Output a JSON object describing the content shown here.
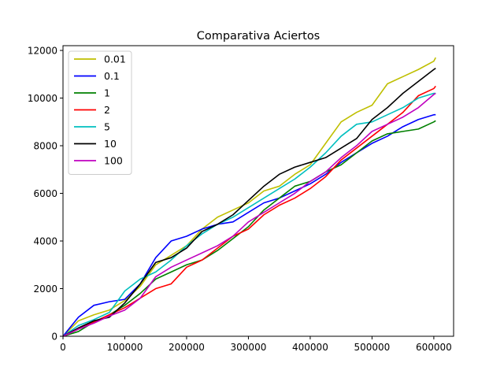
{
  "chart_data": {
    "type": "line",
    "title": "Comparativa Aciertos",
    "xlabel": "",
    "ylabel": "",
    "xlim": [
      0,
      632000
    ],
    "ylim": [
      0,
      12200
    ],
    "x_ticks": [
      0,
      100000,
      200000,
      300000,
      400000,
      500000,
      600000
    ],
    "x_tick_labels": [
      "0",
      "100000",
      "200000",
      "300000",
      "400000",
      "500000",
      "600000"
    ],
    "y_ticks": [
      0,
      2000,
      4000,
      6000,
      8000,
      10000,
      12000
    ],
    "y_tick_labels": [
      "0",
      "2000",
      "4000",
      "6000",
      "8000",
      "10000",
      "12000"
    ],
    "grid": false,
    "legend_position": "top-left",
    "x": [
      0,
      25000,
      50000,
      75000,
      100000,
      125000,
      150000,
      175000,
      200000,
      225000,
      250000,
      275000,
      300000,
      325000,
      350000,
      375000,
      400000,
      425000,
      450000,
      475000,
      500000,
      525000,
      550000,
      575000,
      600000,
      603000
    ],
    "series": [
      {
        "name": "0.01",
        "color": "#bfbf00",
        "values": [
          0,
          650,
          900,
          1100,
          1500,
          2100,
          3000,
          3400,
          3800,
          4500,
          5000,
          5300,
          5600,
          6100,
          6300,
          6800,
          7200,
          8100,
          9000,
          9400,
          9700,
          10600,
          10900,
          11200,
          11550,
          11700
        ]
      },
      {
        "name": "0.1",
        "color": "#0000ff",
        "values": [
          0,
          800,
          1300,
          1450,
          1550,
          2200,
          3300,
          4000,
          4200,
          4500,
          4700,
          4800,
          5200,
          5600,
          5800,
          6100,
          6400,
          6800,
          7300,
          7700,
          8100,
          8400,
          8800,
          9100,
          9300,
          9300
        ]
      },
      {
        "name": "1",
        "color": "#008000",
        "values": [
          0,
          200,
          600,
          900,
          1300,
          1800,
          2400,
          2700,
          3000,
          3200,
          3600,
          4100,
          4600,
          5300,
          5800,
          6300,
          6500,
          6900,
          7200,
          7700,
          8200,
          8500,
          8600,
          8700,
          9000,
          9050
        ]
      },
      {
        "name": "2",
        "color": "#ff0000",
        "values": [
          0,
          300,
          600,
          900,
          1200,
          1600,
          2000,
          2200,
          2900,
          3200,
          3700,
          4200,
          4500,
          5100,
          5500,
          5800,
          6200,
          6700,
          7400,
          7900,
          8400,
          8900,
          9400,
          10100,
          10400,
          10500
        ]
      },
      {
        "name": "5",
        "color": "#00bfbf",
        "values": [
          0,
          450,
          700,
          1000,
          1900,
          2400,
          2700,
          3200,
          3800,
          4300,
          4700,
          5000,
          5400,
          5800,
          6200,
          6600,
          7100,
          7700,
          8400,
          8900,
          9000,
          9300,
          9600,
          10000,
          10200,
          10200
        ]
      },
      {
        "name": "10",
        "color": "#000000",
        "values": [
          0,
          350,
          650,
          800,
          1400,
          2200,
          3100,
          3300,
          3700,
          4400,
          4700,
          5100,
          5700,
          6300,
          6800,
          7100,
          7300,
          7500,
          7900,
          8300,
          9100,
          9600,
          10200,
          10700,
          11200,
          11250
        ]
      },
      {
        "name": "100",
        "color": "#bf00bf",
        "values": [
          0,
          300,
          550,
          850,
          1100,
          1600,
          2500,
          2900,
          3200,
          3500,
          3800,
          4200,
          4800,
          5200,
          5600,
          6000,
          6500,
          6900,
          7500,
          8000,
          8600,
          8900,
          9200,
          9600,
          10150,
          10200
        ]
      }
    ]
  }
}
